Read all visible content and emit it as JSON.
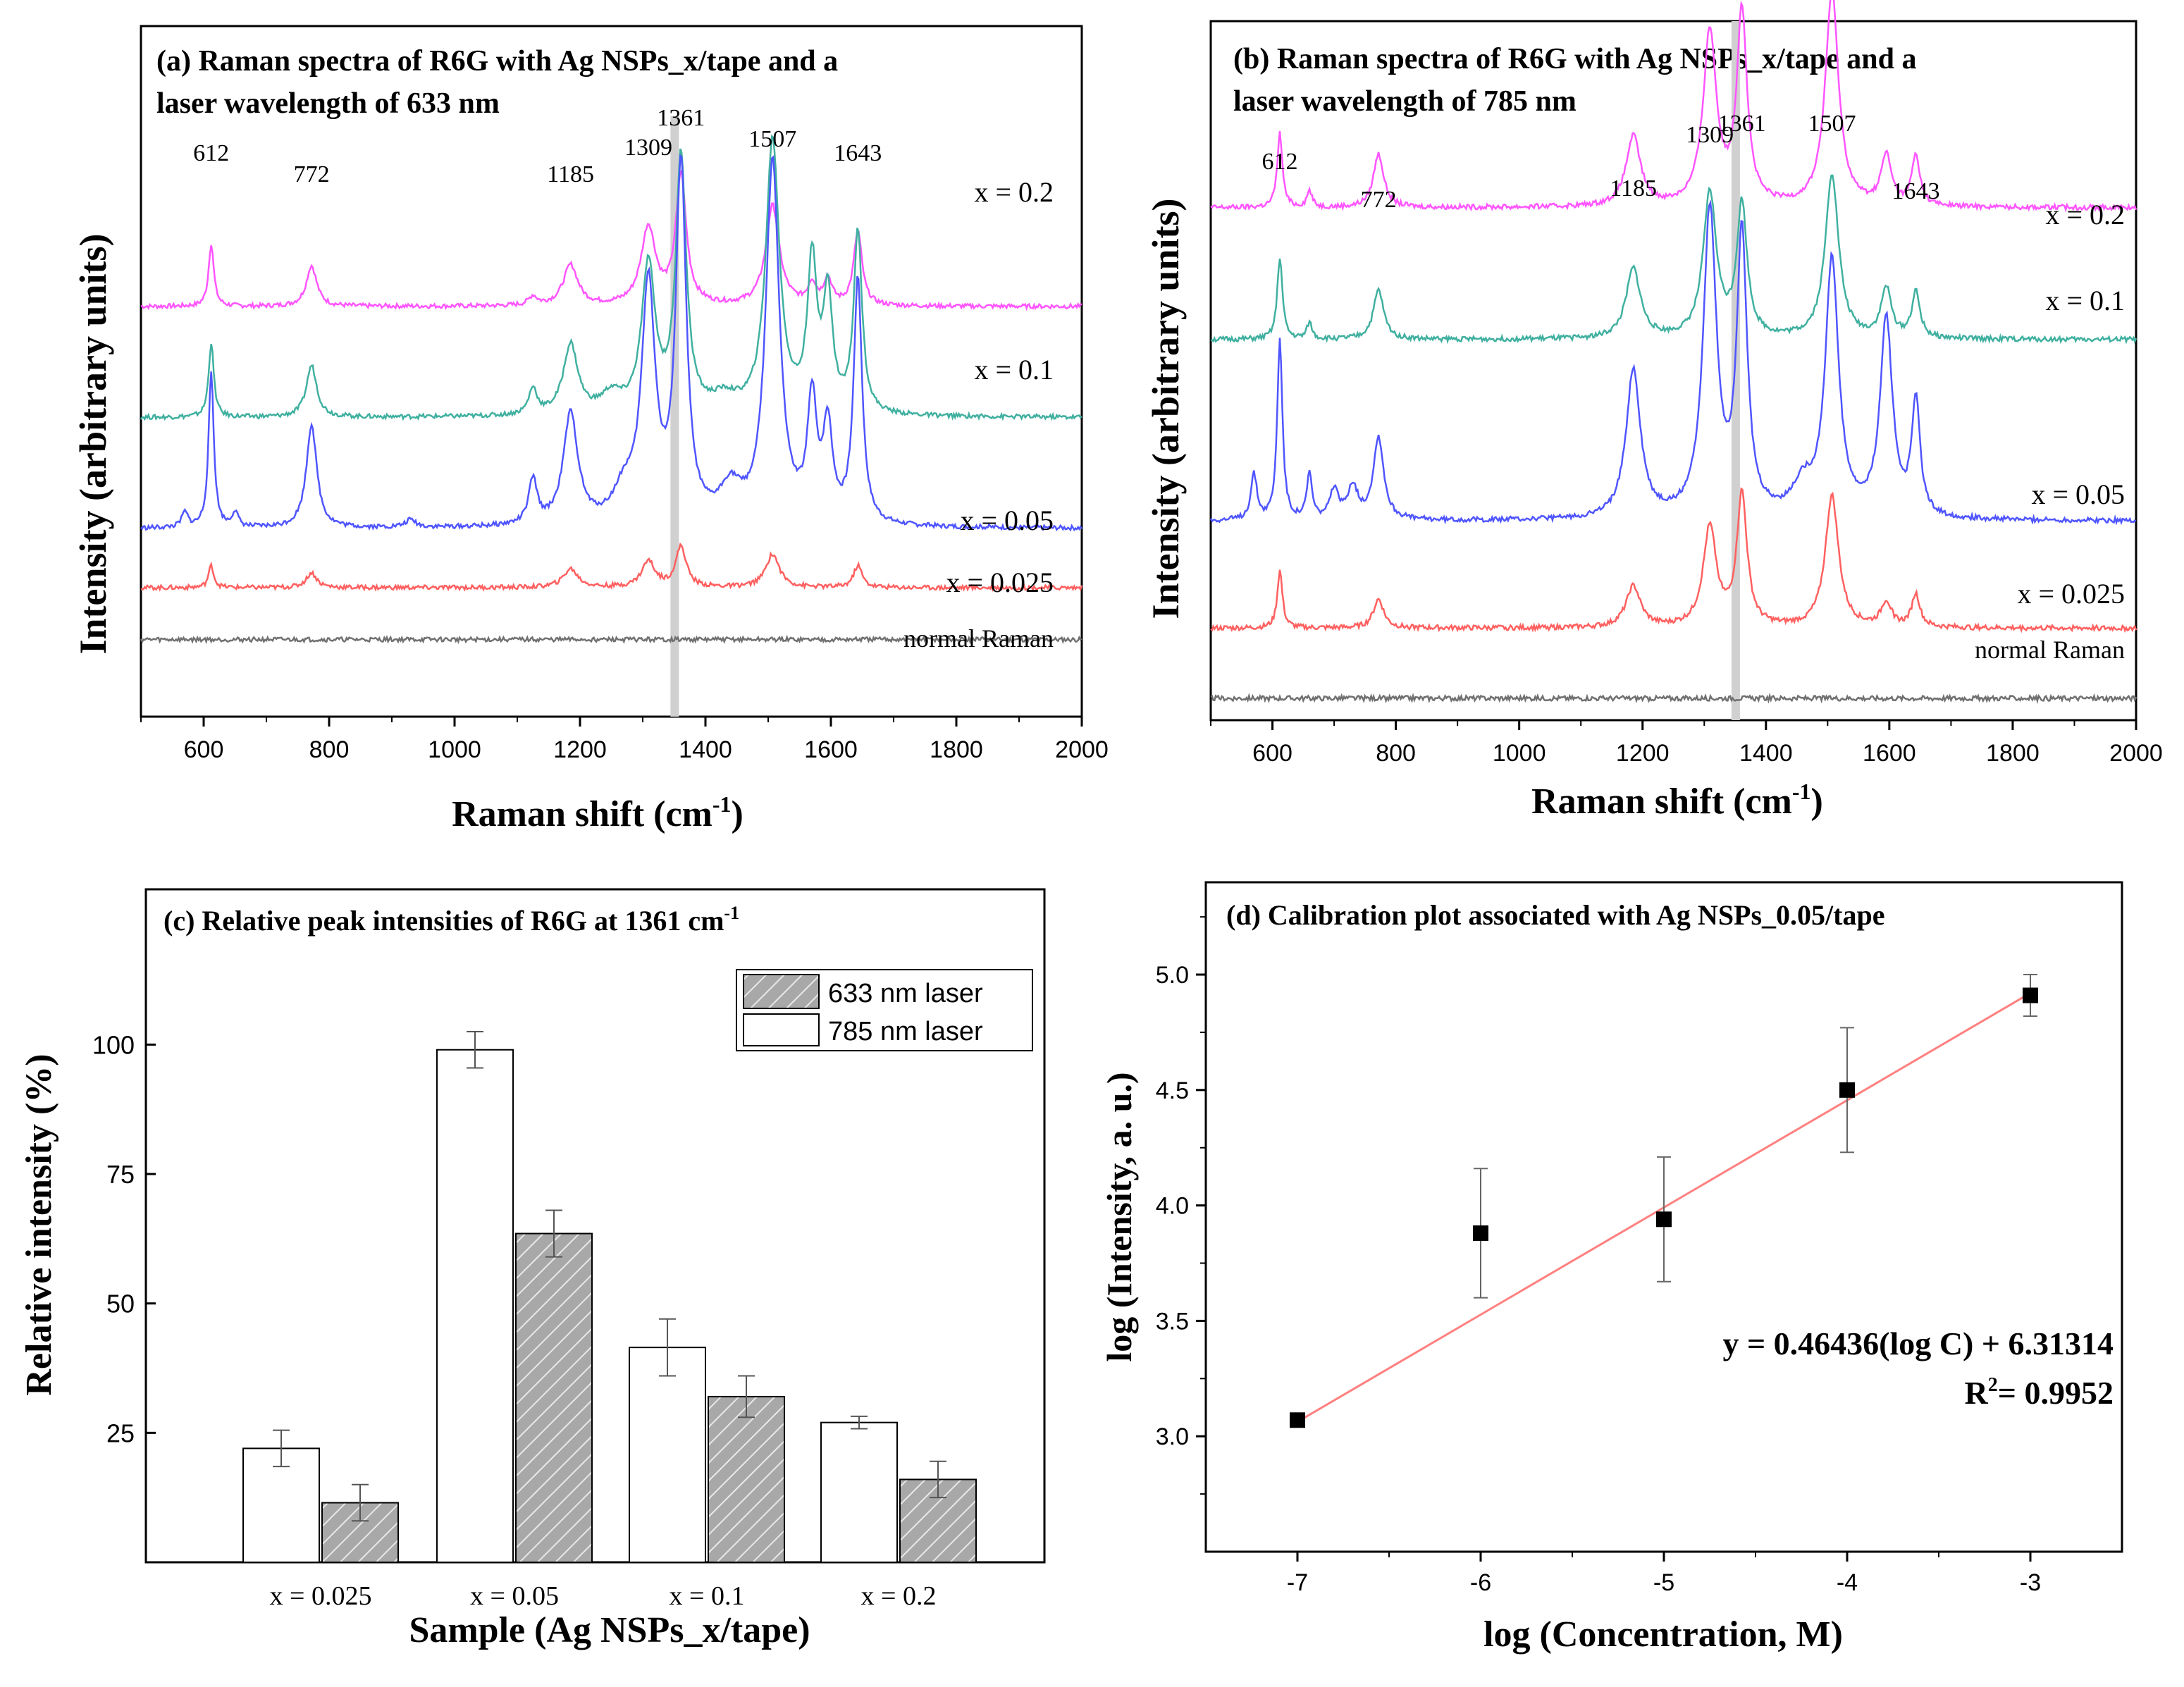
{
  "colors": {
    "pink": "#ff55ff",
    "teal": "#40b0a0",
    "blue": "#4f55ff",
    "red": "#ff6060",
    "gray": "#707070",
    "fit_line": "#ff8080",
    "band": "#d0d0d0",
    "bar_hatch": "#a8a8a8"
  },
  "chart_data": [
    {
      "id": "a",
      "type": "line",
      "title_line1": "(a) Raman spectra of R6G with Ag NSPs_x/tape and a",
      "title_line2": "laser wavelength of 633 nm",
      "xlabel_main": "Raman shift (cm",
      "xlabel_sup": "-1",
      "xlabel_end": ")",
      "ylabel": "Intensity (arbitrary units)",
      "xlim": [
        500,
        2000
      ],
      "xticks": [
        "600",
        "800",
        "1000",
        "1200",
        "1400",
        "1600",
        "1800",
        "2000"
      ],
      "highlight_band_x": 1351,
      "peak_labels": [
        {
          "text": "612",
          "x": 612
        },
        {
          "text": "772",
          "x": 772
        },
        {
          "text": "1185",
          "x": 1185
        },
        {
          "text": "1309",
          "x": 1309
        },
        {
          "text": "1361",
          "x": 1361
        },
        {
          "text": "1507",
          "x": 1507
        },
        {
          "text": "1643",
          "x": 1643
        }
      ],
      "series": [
        {
          "name": "x = 0.2",
          "color": "pink",
          "baseline": 5.0,
          "scale": 1.0,
          "peaks": [
            [
              612,
              0.85,
              5
            ],
            [
              772,
              0.55,
              10
            ],
            [
              1125,
              0.12,
              8
            ],
            [
              1185,
              0.55,
              14
            ],
            [
              1309,
              1.05,
              14
            ],
            [
              1361,
              1.75,
              10
            ],
            [
              1507,
              1.35,
              13
            ],
            [
              1570,
              0.28,
              8
            ],
            [
              1595,
              0.35,
              8
            ],
            [
              1643,
              1.0,
              8
            ]
          ]
        },
        {
          "name": "x = 0.1",
          "color": "teal",
          "baseline": 3.5,
          "scale": 1.0,
          "peaks": [
            [
              612,
              1.0,
              5
            ],
            [
              772,
              0.7,
              10
            ],
            [
              1125,
              0.35,
              8
            ],
            [
              1185,
              0.95,
              14
            ],
            [
              1250,
              0.25,
              20
            ],
            [
              1309,
              2.0,
              13
            ],
            [
              1361,
              3.45,
              10
            ],
            [
              1430,
              0.2,
              25
            ],
            [
              1507,
              3.7,
              13
            ],
            [
              1570,
              2.0,
              9
            ],
            [
              1595,
              1.55,
              9
            ],
            [
              1643,
              2.45,
              8
            ]
          ]
        },
        {
          "name": "x = 0.05",
          "color": "blue",
          "baseline": 2.0,
          "scale": 1.0,
          "peaks": [
            [
              570,
              0.2,
              6
            ],
            [
              612,
              2.1,
              5
            ],
            [
              650,
              0.2,
              6
            ],
            [
              772,
              1.4,
              10
            ],
            [
              930,
              0.1,
              10
            ],
            [
              1125,
              0.6,
              8
            ],
            [
              1185,
              1.5,
              14
            ],
            [
              1270,
              0.4,
              20
            ],
            [
              1309,
              3.2,
              13
            ],
            [
              1361,
              4.8,
              10
            ],
            [
              1440,
              0.45,
              20
            ],
            [
              1507,
              4.9,
              13
            ],
            [
              1570,
              1.6,
              9
            ],
            [
              1595,
              1.25,
              9
            ],
            [
              1643,
              3.3,
              8
            ]
          ]
        },
        {
          "name": "x = 0.025",
          "color": "red",
          "baseline": 1.2,
          "scale": 1.0,
          "peaks": [
            [
              612,
              0.3,
              5
            ],
            [
              772,
              0.2,
              10
            ],
            [
              1185,
              0.25,
              14
            ],
            [
              1309,
              0.35,
              13
            ],
            [
              1361,
              0.55,
              10
            ],
            [
              1507,
              0.45,
              13
            ],
            [
              1643,
              0.3,
              8
            ]
          ]
        },
        {
          "name": "normal Raman",
          "color": "gray",
          "baseline": 0.5,
          "scale": 1.0,
          "peaks": []
        }
      ]
    },
    {
      "id": "b",
      "type": "line",
      "title_line1": "(b) Raman spectra of R6G with Ag NSPs_x/tape and a",
      "title_line2": "laser wavelength of 785 nm",
      "xlabel_main": "Raman shift (cm",
      "xlabel_sup": "-1",
      "xlabel_end": ")",
      "ylabel": "Intensity (arbitrary units)",
      "xlim": [
        500,
        2000
      ],
      "xticks": [
        "600",
        "800",
        "1000",
        "1200",
        "1400",
        "1600",
        "1800",
        "2000"
      ],
      "highlight_band_x": 1351,
      "peak_labels": [
        {
          "text": "612",
          "x": 612
        },
        {
          "text": "772",
          "x": 772
        },
        {
          "text": "1185",
          "x": 1185
        },
        {
          "text": "1309",
          "x": 1309
        },
        {
          "text": "1361",
          "x": 1361
        },
        {
          "text": "1507",
          "x": 1507
        },
        {
          "text": "1643",
          "x": 1643
        }
      ],
      "series": [
        {
          "name": "x = 0.2",
          "color": "pink",
          "baseline": 5.6,
          "scale": 1.0,
          "peaks": [
            [
              612,
              0.9,
              5
            ],
            [
              660,
              0.2,
              5
            ],
            [
              772,
              0.65,
              10
            ],
            [
              1185,
              0.85,
              14
            ],
            [
              1309,
              2.1,
              13
            ],
            [
              1361,
              2.35,
              10
            ],
            [
              1507,
              2.6,
              13
            ],
            [
              1595,
              0.6,
              10
            ],
            [
              1643,
              0.6,
              8
            ]
          ]
        },
        {
          "name": "x = 0.1",
          "color": "teal",
          "baseline": 4.0,
          "scale": 1.0,
          "peaks": [
            [
              612,
              1.0,
              5
            ],
            [
              660,
              0.2,
              5
            ],
            [
              772,
              0.6,
              10
            ],
            [
              1185,
              0.85,
              14
            ],
            [
              1309,
              1.75,
              13
            ],
            [
              1361,
              1.6,
              10
            ],
            [
              1507,
              2.0,
              13
            ],
            [
              1595,
              0.6,
              10
            ],
            [
              1643,
              0.55,
              8
            ]
          ]
        },
        {
          "name": "x = 0.05",
          "color": "blue",
          "baseline": 1.8,
          "scale": 1.0,
          "peaks": [
            [
              570,
              0.55,
              6
            ],
            [
              612,
              2.2,
              5
            ],
            [
              660,
              0.55,
              5
            ],
            [
              700,
              0.35,
              8
            ],
            [
              730,
              0.4,
              10
            ],
            [
              772,
              1.0,
              10
            ],
            [
              1185,
              1.8,
              14
            ],
            [
              1309,
              3.7,
              13
            ],
            [
              1361,
              3.4,
              10
            ],
            [
              1460,
              0.35,
              20
            ],
            [
              1507,
              3.1,
              13
            ],
            [
              1595,
              2.4,
              12
            ],
            [
              1643,
              1.4,
              8
            ]
          ]
        },
        {
          "name": "x = 0.025",
          "color": "red",
          "baseline": 0.5,
          "scale": 1.0,
          "peaks": [
            [
              612,
              0.7,
              5
            ],
            [
              772,
              0.35,
              10
            ],
            [
              1185,
              0.5,
              14
            ],
            [
              1309,
              1.2,
              13
            ],
            [
              1361,
              1.6,
              10
            ],
            [
              1507,
              1.6,
              13
            ],
            [
              1595,
              0.3,
              10
            ],
            [
              1643,
              0.4,
              8
            ]
          ]
        },
        {
          "name": "normal Raman",
          "color": "gray",
          "baseline": -0.35,
          "scale": 1.0,
          "peaks": []
        }
      ]
    },
    {
      "id": "c",
      "type": "bar",
      "title_main": "(c) Relative peak intensities of R6G at 1361 cm",
      "title_sup": "-1",
      "xlabel": "Sample (Ag NSPs_x/tape)",
      "ylabel": "Relative intensity (%)",
      "ylim": [
        0,
        130
      ],
      "yticks": [
        "25",
        "50",
        "75",
        "100"
      ],
      "categories": [
        "x = 0.025",
        "x = 0.05",
        "x = 0.1",
        "x = 0.2"
      ],
      "legend": [
        "633 nm laser",
        "785 nm laser"
      ],
      "series": [
        {
          "name": "785 nm laser",
          "values": [
            22,
            99,
            41.5,
            27
          ],
          "errors": [
            3.5,
            3.5,
            5.5,
            1.2
          ]
        },
        {
          "name": "633 nm laser",
          "values": [
            11.5,
            63.5,
            32,
            16
          ],
          "errors": [
            3.5,
            4.5,
            4.0,
            3.5
          ]
        }
      ]
    },
    {
      "id": "d",
      "type": "scatter",
      "title": "(d) Calibration plot associated with Ag NSPs_0.05/tape",
      "xlabel": "log (Concentration, M)",
      "ylabel": "log (Intensity, a. u.)",
      "xlim": [
        -7.5,
        -2.5
      ],
      "ylim": [
        2.5,
        5.4
      ],
      "xticks": [
        "-7",
        "-6",
        "-5",
        "-4",
        "-3"
      ],
      "yticks": [
        "3.0",
        "3.5",
        "4.0",
        "4.5",
        "5.0"
      ],
      "x": [
        -7,
        -6,
        -5,
        -4,
        -3
      ],
      "y": [
        3.07,
        3.88,
        3.94,
        4.5,
        4.91
      ],
      "errors": [
        0.02,
        0.28,
        0.27,
        0.27,
        0.09
      ],
      "fit": {
        "slope": 0.46436,
        "intercept": 6.31314
      },
      "equation": "y = 0.46436(log C) + 6.31314",
      "r2_label": "R",
      "r2_sup": "2",
      "r2_value": "= 0.9952"
    }
  ]
}
